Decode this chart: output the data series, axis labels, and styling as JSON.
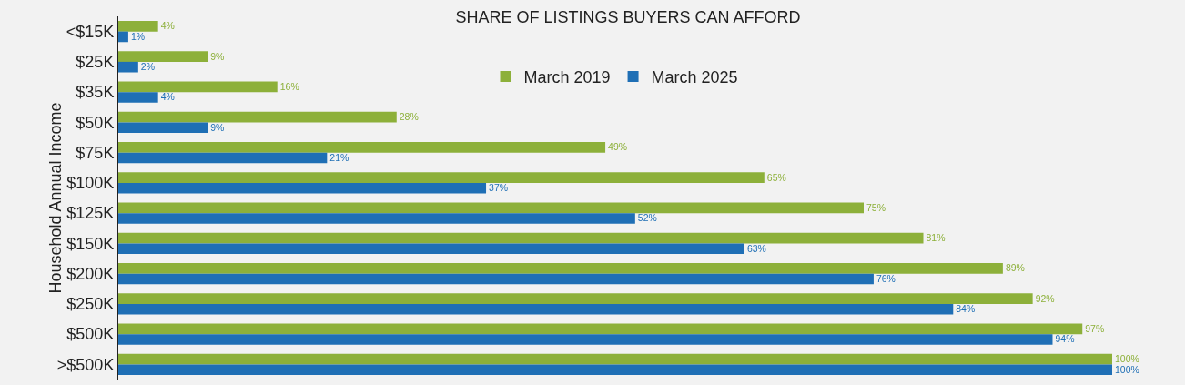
{
  "chart_data": {
    "type": "bar",
    "orientation": "horizontal",
    "title": "SHARE OF LISTINGS BUYERS CAN AFFORD",
    "ylabel": "Household Annual Income",
    "categories": [
      "<$15K",
      "$25K",
      "$35K",
      "$50K",
      "$75K",
      "$100K",
      "$125K",
      "$150K",
      "$200K",
      "$250K",
      "$500K",
      ">$500K"
    ],
    "series": [
      {
        "name": "March 2019",
        "color": "#8db03a",
        "values": [
          4,
          9,
          16,
          28,
          49,
          65,
          75,
          81,
          89,
          92,
          97,
          100
        ],
        "value_labels": [
          "4%",
          "9%",
          "16%",
          "28%",
          "49%",
          "65%",
          "75%",
          "81%",
          "89%",
          "92%",
          "97%",
          "100%"
        ]
      },
      {
        "name": "March 2025",
        "color": "#1f6fb5",
        "values": [
          1,
          2,
          4,
          9,
          21,
          37,
          52,
          63,
          76,
          84,
          94,
          100
        ],
        "value_labels": [
          "1%",
          "2%",
          "4%",
          "9%",
          "21%",
          "37%",
          "52%",
          "63%",
          "76%",
          "84%",
          "94%",
          "100%"
        ]
      }
    ],
    "xlim": [
      0,
      100
    ],
    "tick_labels": "y",
    "grid": false,
    "legend": "top"
  }
}
